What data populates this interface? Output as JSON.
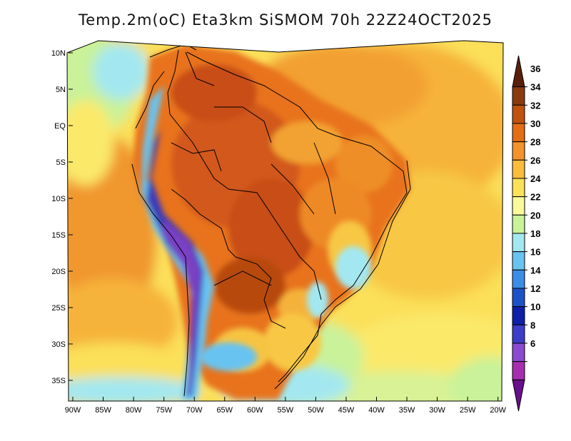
{
  "title": "Temp.2m(oC) Eta3km SiSMOM 70h 22Z24OCT2025",
  "lat_labels": [
    "10N",
    "5N",
    "EQ",
    "5S",
    "10S",
    "15S",
    "20S",
    "25S",
    "30S",
    "35S"
  ],
  "lon_labels": [
    "90W",
    "85W",
    "80W",
    "75W",
    "70W",
    "65W",
    "60W",
    "55W",
    "50W",
    "45W",
    "40W",
    "35W",
    "30W",
    "25W",
    "20W"
  ],
  "colorbar": {
    "labels": [
      "36",
      "34",
      "32",
      "30",
      "28",
      "26",
      "24",
      "22",
      "20",
      "18",
      "16",
      "14",
      "12",
      "10",
      "8",
      "6"
    ],
    "colors": [
      "#5a1f0a",
      "#8b3a10",
      "#c0520e",
      "#e56d16",
      "#f4932b",
      "#fabd3b",
      "#fbe157",
      "#fafa9a",
      "#c9f29a",
      "#a3e8f0",
      "#69c3f0",
      "#3c8de6",
      "#1c52c8",
      "#0e1faa",
      "#3d3dc9",
      "#8a4bd1",
      "#a62db0",
      "#6a0f8c"
    ]
  }
}
